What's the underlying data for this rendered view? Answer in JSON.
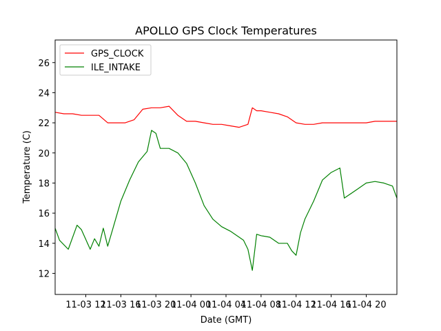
{
  "chart_data": {
    "type": "line",
    "title": "APOLLO GPS Clock Temperatures",
    "xlabel": "Date (GMT)",
    "ylabel": "Temperature (C)",
    "xlim": [
      "11-03 08:30",
      "11-04 23:30"
    ],
    "ylim": [
      10.6,
      27.5
    ],
    "x_ticks": [
      "11-03 12",
      "11-03 16",
      "11-03 20",
      "11-04 00",
      "11-04 04",
      "11-04 08",
      "11-04 12",
      "11-04 16",
      "11-04 20"
    ],
    "y_ticks": [
      12,
      14,
      16,
      18,
      20,
      22,
      24,
      26
    ],
    "grid": false,
    "legend": "top-left",
    "series": [
      {
        "name": "GPS_CLOCK",
        "color": "#ff0000",
        "x": [
          "11-03 08:30",
          "11-03 09:30",
          "11-03 10:30",
          "11-03 11:30",
          "11-03 12:30",
          "11-03 13:30",
          "11-03 14:30",
          "11-03 15:30",
          "11-03 16:30",
          "11-03 17:30",
          "11-03 18:30",
          "11-03 19:30",
          "11-03 20:30",
          "11-03 21:30",
          "11-03 22:30",
          "11-03 23:30",
          "11-04 00:30",
          "11-04 01:30",
          "11-04 02:30",
          "11-04 03:30",
          "11-04 04:30",
          "11-04 05:30",
          "11-04 06:30",
          "11-04 07:00",
          "11-04 07:30",
          "11-04 08:00",
          "11-04 09:00",
          "11-04 10:00",
          "11-04 11:00",
          "11-04 12:00",
          "11-04 13:00",
          "11-04 14:00",
          "11-04 15:00",
          "11-04 16:00",
          "11-04 17:00",
          "11-04 18:00",
          "11-04 19:00",
          "11-04 20:00",
          "11-04 21:00",
          "11-04 22:00",
          "11-04 23:00",
          "11-04 23:30"
        ],
        "y": [
          22.7,
          22.6,
          22.6,
          22.5,
          22.5,
          22.5,
          22.0,
          22.0,
          22.0,
          22.2,
          22.9,
          23.0,
          23.0,
          23.1,
          22.5,
          22.1,
          22.1,
          22.0,
          21.9,
          21.9,
          21.8,
          21.7,
          21.9,
          23.0,
          22.8,
          22.8,
          22.7,
          22.6,
          22.4,
          22.0,
          21.9,
          21.9,
          22.0,
          22.0,
          22.0,
          22.0,
          22.0,
          22.0,
          22.1,
          22.1,
          22.1,
          22.1
        ]
      },
      {
        "name": "ILE_INTAKE",
        "color": "#008000",
        "x": [
          "11-03 08:30",
          "11-03 09:00",
          "11-03 10:00",
          "11-03 11:00",
          "11-03 11:30",
          "11-03 12:30",
          "11-03 13:00",
          "11-03 13:30",
          "11-03 14:00",
          "11-03 14:30",
          "11-03 15:00",
          "11-03 16:00",
          "11-03 17:00",
          "11-03 18:00",
          "11-03 19:00",
          "11-03 19:30",
          "11-03 20:00",
          "11-03 20:30",
          "11-03 21:30",
          "11-03 22:30",
          "11-03 23:30",
          "11-04 00:30",
          "11-04 01:30",
          "11-04 02:30",
          "11-04 03:30",
          "11-04 04:30",
          "11-04 05:30",
          "11-04 06:00",
          "11-04 06:30",
          "11-04 07:00",
          "11-04 07:30",
          "11-04 08:00",
          "11-04 09:00",
          "11-04 10:00",
          "11-04 11:00",
          "11-04 11:30",
          "11-04 12:00",
          "11-04 12:30",
          "11-04 13:00",
          "11-04 14:00",
          "11-04 15:00",
          "11-04 16:00",
          "11-04 17:00",
          "11-04 17:30",
          "11-04 18:00",
          "11-04 19:00",
          "11-04 20:00",
          "11-04 21:00",
          "11-04 22:00",
          "11-04 23:00",
          "11-04 23:30"
        ],
        "y": [
          15.0,
          14.2,
          13.6,
          15.2,
          14.9,
          13.6,
          14.3,
          13.8,
          15.0,
          13.8,
          14.8,
          16.8,
          18.2,
          19.4,
          20.1,
          21.5,
          21.3,
          20.3,
          20.3,
          20.0,
          19.3,
          18.0,
          16.5,
          15.6,
          15.1,
          14.8,
          14.4,
          14.2,
          13.6,
          12.2,
          14.6,
          14.5,
          14.4,
          14.0,
          14.0,
          13.5,
          13.2,
          14.7,
          15.6,
          16.8,
          18.2,
          18.7,
          19.0,
          17.0,
          17.2,
          17.6,
          18.0,
          18.1,
          18.0,
          17.8,
          17.0
        ]
      }
    ]
  }
}
